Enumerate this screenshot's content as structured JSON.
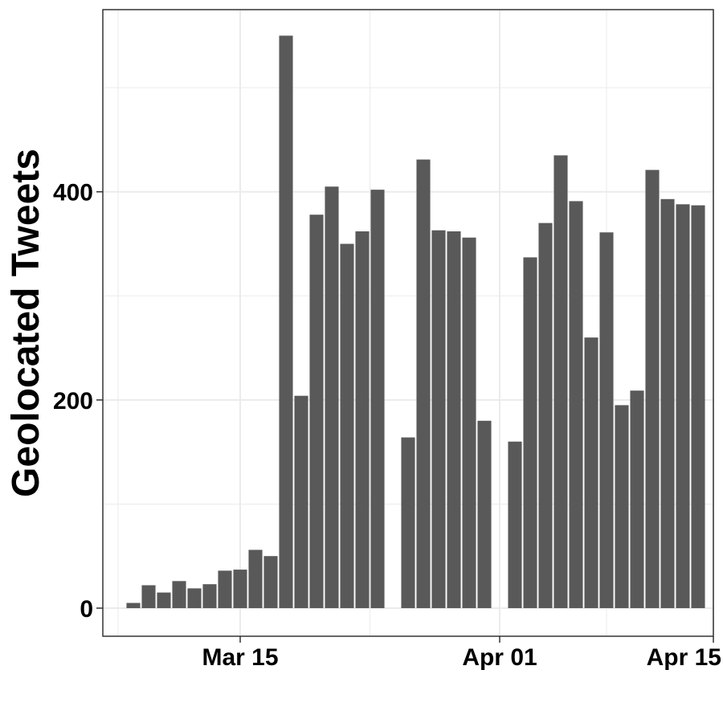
{
  "chart_data": {
    "type": "bar",
    "title": "",
    "xlabel": "",
    "ylabel": "Geolocated Tweets",
    "x_axis": {
      "type": "date",
      "range": [
        "2020-03-06",
        "2020-04-15"
      ],
      "ticks": [
        {
          "date": "2020-03-15",
          "label": "Mar 15"
        },
        {
          "date": "2020-04-01",
          "label": "Apr 01"
        },
        {
          "date": "2020-04-15",
          "label": "Apr 15"
        }
      ]
    },
    "y_axis": {
      "range": [
        -27,
        575
      ],
      "ticks": [
        {
          "value": 0,
          "label": "0"
        },
        {
          "value": 200,
          "label": "200"
        },
        {
          "value": 400,
          "label": "400"
        }
      ]
    },
    "grid": true,
    "bar_color": "#595959",
    "background": "#ffffff",
    "grid_color": "#ebebeb",
    "series": [
      {
        "dates": [
          "2020-03-08",
          "2020-03-09",
          "2020-03-10",
          "2020-03-11",
          "2020-03-12",
          "2020-03-13",
          "2020-03-14",
          "2020-03-15",
          "2020-03-16",
          "2020-03-17",
          "2020-03-18",
          "2020-03-19",
          "2020-03-20",
          "2020-03-21",
          "2020-03-22",
          "2020-03-23",
          "2020-03-24",
          "2020-03-25",
          "2020-03-26",
          "2020-03-27",
          "2020-03-28",
          "2020-03-29",
          "2020-03-30",
          "2020-03-31",
          "2020-04-01",
          "2020-04-02",
          "2020-04-03",
          "2020-04-04",
          "2020-04-05",
          "2020-04-06",
          "2020-04-07",
          "2020-04-08",
          "2020-04-09",
          "2020-04-10",
          "2020-04-11",
          "2020-04-12",
          "2020-04-13",
          "2020-04-14"
        ],
        "values": [
          5,
          22,
          15,
          26,
          19,
          23,
          36,
          37,
          56,
          50,
          550,
          204,
          378,
          405,
          350,
          362,
          402,
          0,
          164,
          431,
          363,
          362,
          356,
          180,
          0,
          160,
          337,
          370,
          435,
          391,
          260,
          361,
          195,
          209,
          421,
          393,
          388,
          387
        ]
      }
    ]
  }
}
